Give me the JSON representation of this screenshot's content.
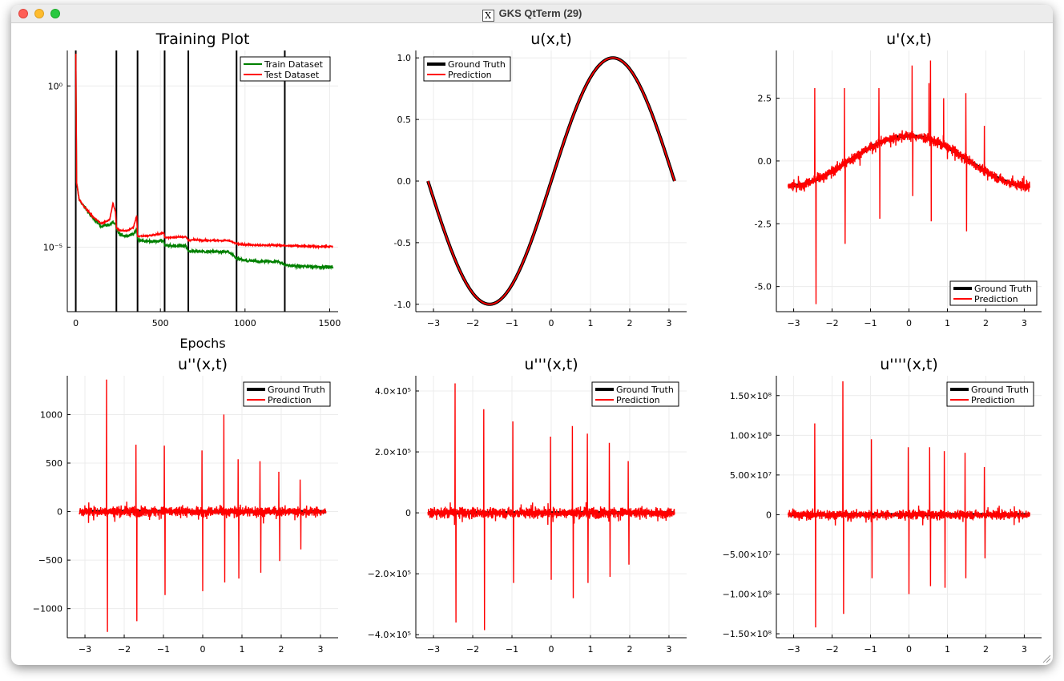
{
  "window": {
    "title": "GKS QtTerm (29)",
    "icon": "x11-icon"
  },
  "colors": {
    "train": "#008000",
    "test": "#ff0000",
    "ground_truth": "#000000",
    "prediction": "#ff0000",
    "vline": "#000000"
  },
  "chart_data": [
    {
      "type": "line",
      "title": "Training Plot",
      "xlabel": "Epochs",
      "ylabel": "",
      "yscale": "log",
      "xlim": [
        -50,
        1550
      ],
      "xticks": [
        "0",
        "500",
        "1000",
        "1500"
      ],
      "yticks": [
        "10⁰",
        "10⁻⁵"
      ],
      "ylim_log10": [
        -7,
        1.1
      ],
      "legend": "top-right",
      "vertical_lines": [
        0,
        240,
        365,
        525,
        665,
        950,
        1235
      ],
      "series": [
        {
          "name": "Train Dataset",
          "color": "#008000",
          "x": [
            0,
            5,
            20,
            50,
            100,
            150,
            200,
            220,
            235,
            240,
            260,
            300,
            340,
            360,
            365,
            380,
            450,
            520,
            525,
            560,
            650,
            665,
            700,
            800,
            900,
            950,
            1000,
            1100,
            1200,
            1235,
            1300,
            1400,
            1520
          ],
          "y": [
            10,
            0.001,
            0.0003,
            0.00018,
            8e-05,
            4.5e-05,
            5e-05,
            6e-05,
            5e-05,
            3.5e-05,
            2.5e-05,
            2.2e-05,
            2.6e-05,
            3.5e-05,
            1.8e-05,
            1.6e-05,
            1.5e-05,
            1.6e-05,
            1.1e-05,
            1.1e-05,
            1.1e-05,
            7.5e-06,
            7.5e-06,
            7.2e-06,
            7.2e-06,
            4.5e-06,
            3.8e-06,
            3.6e-06,
            3.6e-06,
            2.8e-06,
            2.6e-06,
            2.5e-06,
            2.4e-06
          ]
        },
        {
          "name": "Test Dataset",
          "color": "#ff0000",
          "x": [
            0,
            5,
            20,
            50,
            100,
            150,
            200,
            220,
            235,
            240,
            260,
            300,
            340,
            360,
            365,
            380,
            450,
            520,
            525,
            560,
            650,
            665,
            700,
            800,
            900,
            950,
            1000,
            1100,
            1200,
            1235,
            1300,
            1400,
            1520
          ],
          "y": [
            10,
            0.001,
            0.0003,
            0.00018,
            9e-05,
            5.5e-05,
            7e-05,
            0.00023,
            0.00012,
            4e-05,
            3.3e-05,
            3.2e-05,
            4e-05,
            9.5e-05,
            2.2e-05,
            2.2e-05,
            2.3e-05,
            2.8e-05,
            2e-05,
            2e-05,
            2.1e-05,
            1.6e-05,
            1.7e-05,
            1.6e-05,
            1.6e-05,
            1.3e-05,
            1.2e-05,
            1.15e-05,
            1.15e-05,
            1.1e-05,
            1.1e-05,
            1.05e-05,
            1.05e-05
          ]
        }
      ]
    },
    {
      "type": "line",
      "title": "u(x,t)",
      "xlim": [
        -3.45,
        3.45
      ],
      "ylim": [
        -1.06,
        1.06
      ],
      "xticks": [
        -3,
        -2,
        -1,
        0,
        1,
        2,
        3
      ],
      "yticks": [
        "1.0",
        "0.5",
        "0.0",
        "-0.5",
        "-1.0"
      ],
      "ytick_values": [
        1.0,
        0.5,
        0.0,
        -0.5,
        -1.0
      ],
      "legend": "top-left",
      "series": [
        {
          "name": "Ground Truth",
          "function": "sin(x)",
          "x_range": [
            -3.1416,
            3.1416
          ]
        },
        {
          "name": "Prediction",
          "function": "sin(x)",
          "x_range": [
            -3.1416,
            3.1416
          ]
        }
      ]
    },
    {
      "type": "line",
      "title": "u'(x,t)",
      "xlim": [
        -3.45,
        3.45
      ],
      "ylim": [
        -6.0,
        4.4
      ],
      "xticks": [
        -3,
        -2,
        -1,
        0,
        1,
        2,
        3
      ],
      "yticks": [
        "2.5",
        "0.0",
        "-2.5",
        "-5.0"
      ],
      "ytick_values": [
        2.5,
        0.0,
        -2.5,
        -5.0
      ],
      "legend": "bottom-right",
      "noise_amplitude": 0.35,
      "spikes": [
        [
          -2.45,
          2.9
        ],
        [
          -2.42,
          -5.7
        ],
        [
          -1.68,
          2.9
        ],
        [
          -1.66,
          -3.3
        ],
        [
          -0.78,
          2.9
        ],
        [
          -0.76,
          -2.3
        ],
        [
          0.08,
          3.8
        ],
        [
          0.1,
          -1.4
        ],
        [
          0.52,
          3.1
        ],
        [
          0.56,
          4.0
        ],
        [
          0.58,
          -2.4
        ],
        [
          0.9,
          2.5
        ],
        [
          1.48,
          2.7
        ],
        [
          1.5,
          -2.8
        ],
        [
          1.96,
          1.4
        ]
      ],
      "series": [
        {
          "name": "Ground Truth",
          "function": "cos(x)",
          "x_range": [
            -3.1416,
            3.1416
          ]
        },
        {
          "name": "Prediction",
          "function": "cos(x) + noise"
        }
      ]
    },
    {
      "type": "line",
      "title": "u''(x,t)",
      "xlim": [
        -3.45,
        3.45
      ],
      "ylim": [
        -1300,
        1400
      ],
      "xticks": [
        -3,
        -2,
        -1,
        0,
        1,
        2,
        3
      ],
      "yticks": [
        "1000",
        "500",
        "0",
        "−500",
        "−1000"
      ],
      "ytick_values": [
        1000,
        500,
        0,
        -500,
        -1000
      ],
      "legend": "top-right",
      "noise_amplitude": 90,
      "spikes": [
        [
          -2.45,
          1360
        ],
        [
          -2.43,
          -1240
        ],
        [
          -1.7,
          690
        ],
        [
          -1.68,
          -1130
        ],
        [
          -0.98,
          680
        ],
        [
          -0.96,
          -860
        ],
        [
          -0.02,
          630
        ],
        [
          0.0,
          -820
        ],
        [
          0.54,
          1000
        ],
        [
          0.56,
          -730
        ],
        [
          0.9,
          540
        ],
        [
          0.92,
          -690
        ],
        [
          1.46,
          520
        ],
        [
          1.48,
          -630
        ],
        [
          1.94,
          410
        ],
        [
          1.96,
          -510
        ],
        [
          2.48,
          330
        ],
        [
          2.5,
          -390
        ]
      ],
      "series": [
        {
          "name": "Ground Truth",
          "function": "-sin(x)",
          "x_range": [
            -3.1416,
            3.1416
          ]
        },
        {
          "name": "Prediction",
          "function": "-sin(x) + noise"
        }
      ]
    },
    {
      "type": "line",
      "title": "u'''(x,t)",
      "xlim": [
        -3.45,
        3.45
      ],
      "ylim": [
        -410000,
        450000
      ],
      "xticks": [
        -3,
        -2,
        -1,
        0,
        1,
        2,
        3
      ],
      "yticks": [
        "4.0×10⁵",
        "2.0×10⁵",
        "0",
        "−2.0×10⁵",
        "−4.0×10⁵"
      ],
      "ytick_values": [
        400000,
        200000,
        0,
        -200000,
        -400000
      ],
      "legend": "top-right",
      "noise_amplitude": 30000,
      "spikes": [
        [
          -2.45,
          425000
        ],
        [
          -2.43,
          -360000
        ],
        [
          -1.72,
          340000
        ],
        [
          -1.7,
          -385000
        ],
        [
          -0.98,
          300000
        ],
        [
          -0.96,
          -230000
        ],
        [
          -0.02,
          250000
        ],
        [
          0.0,
          -220000
        ],
        [
          0.54,
          285000
        ],
        [
          0.56,
          -280000
        ],
        [
          0.92,
          260000
        ],
        [
          0.94,
          -230000
        ],
        [
          1.48,
          230000
        ],
        [
          1.5,
          -210000
        ],
        [
          1.96,
          170000
        ],
        [
          1.98,
          -170000
        ]
      ],
      "series": [
        {
          "name": "Ground Truth",
          "function": "-cos(x)",
          "x_range": [
            -3.1416,
            3.1416
          ]
        },
        {
          "name": "Prediction",
          "function": "-cos(x) + noise"
        }
      ]
    },
    {
      "type": "line",
      "title": "u''''(x,t)",
      "xlim": [
        -3.45,
        3.45
      ],
      "ylim": [
        -155000000,
        175000000
      ],
      "xticks": [
        -3,
        -2,
        -1,
        0,
        1,
        2,
        3
      ],
      "yticks": [
        "1.50×10⁸",
        "1.00×10⁸",
        "5.00×10⁷",
        "0",
        "−5.00×10⁷",
        "−1.00×10⁸",
        "−1.50×10⁸"
      ],
      "ytick_values": [
        150000000,
        100000000,
        50000000,
        0,
        -50000000,
        -100000000,
        -150000000
      ],
      "legend": "top-right",
      "noise_amplitude": 10000000,
      "spikes": [
        [
          -2.45,
          115000000
        ],
        [
          -2.43,
          -142000000
        ],
        [
          -1.72,
          168000000
        ],
        [
          -1.7,
          -125000000
        ],
        [
          -0.98,
          95000000
        ],
        [
          -0.96,
          -80000000
        ],
        [
          -0.02,
          85000000
        ],
        [
          0.0,
          -100000000
        ],
        [
          0.54,
          85000000
        ],
        [
          0.56,
          -90000000
        ],
        [
          0.92,
          80000000
        ],
        [
          0.94,
          -92000000
        ],
        [
          1.46,
          78000000
        ],
        [
          1.48,
          -80000000
        ],
        [
          1.96,
          60000000
        ],
        [
          1.98,
          -55000000
        ]
      ],
      "series": [
        {
          "name": "Ground Truth",
          "function": "sin(x)",
          "x_range": [
            -3.1416,
            3.1416
          ]
        },
        {
          "name": "Prediction",
          "function": "sin(x) + noise"
        }
      ]
    }
  ]
}
